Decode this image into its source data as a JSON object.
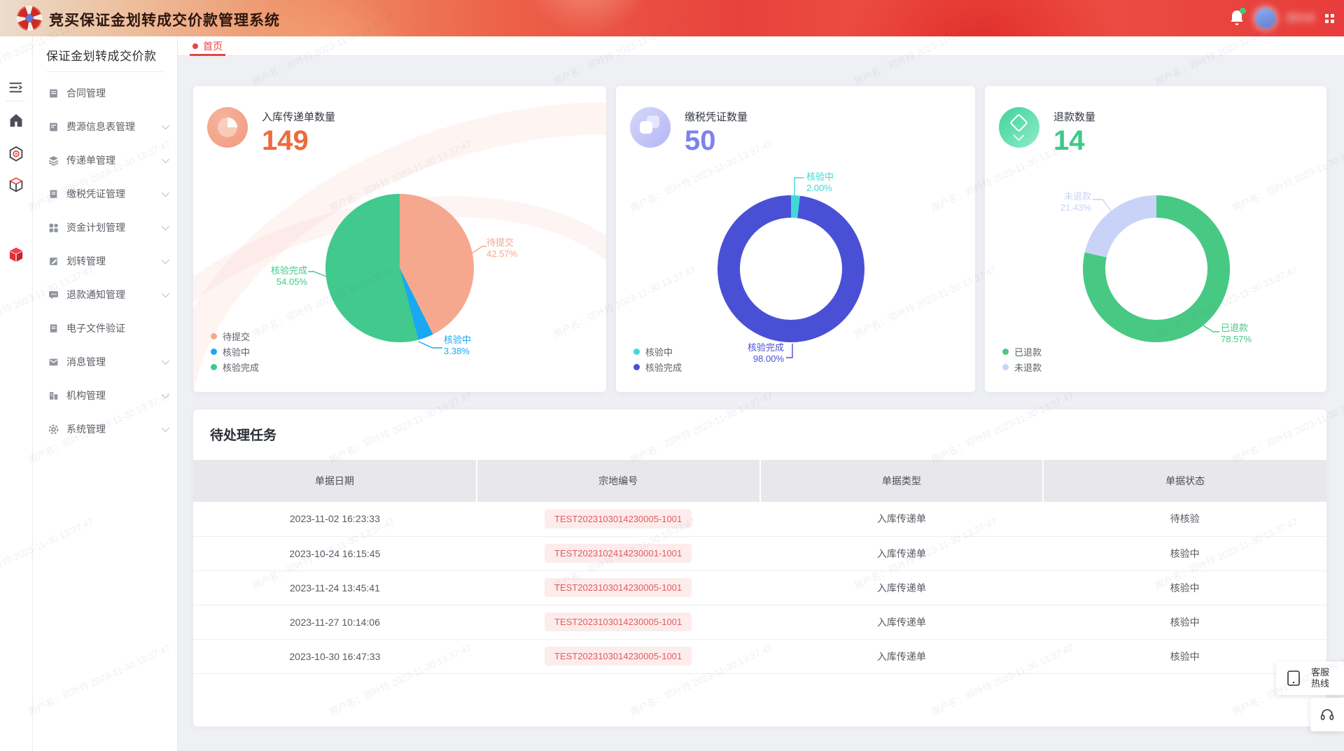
{
  "app": {
    "title": "竞买保证金划转成交价款管理系统"
  },
  "topbar": {
    "user_name": "邓叶玲"
  },
  "watermark": {
    "text": "用户名：邓叶玲 2023-11-30 13:37:47"
  },
  "sidebar": {
    "panel_title": "保证金划转成交价款",
    "items": [
      {
        "label": "合同管理",
        "icon": "contract-doc-icon",
        "has_children": false
      },
      {
        "label": "费源信息表管理",
        "icon": "fee-table-icon",
        "has_children": true
      },
      {
        "label": "传递单管理",
        "icon": "transfer-layers-icon",
        "has_children": true
      },
      {
        "label": "缴税凭证管理",
        "icon": "tax-receipt-icon",
        "has_children": true
      },
      {
        "label": "资金计划管理",
        "icon": "fund-grid-icon",
        "has_children": true
      },
      {
        "label": "划转管理",
        "icon": "transfer-note-icon",
        "has_children": true
      },
      {
        "label": "退款通知管理",
        "icon": "refund-chat-icon",
        "has_children": true
      },
      {
        "label": "电子文件验证",
        "icon": "efile-receipt-icon",
        "has_children": false
      },
      {
        "label": "消息管理",
        "icon": "message-mail-icon",
        "has_children": true
      },
      {
        "label": "机构管理",
        "icon": "org-building-icon",
        "has_children": true
      },
      {
        "label": "系统管理",
        "icon": "system-gear-icon",
        "has_children": true
      }
    ]
  },
  "tabs": [
    {
      "label": "首页",
      "active": true
    }
  ],
  "chart_data": [
    {
      "type": "pie",
      "title": "入库传递单数量",
      "total": 149,
      "slices": [
        {
          "label": "待提交",
          "value": 42.57,
          "pct": "42.57%",
          "color": "#f5a88e"
        },
        {
          "label": "核验中",
          "value": 3.38,
          "pct": "3.38%",
          "color": "#19a9f2"
        },
        {
          "label": "核验完成",
          "value": 54.05,
          "pct": "54.05%",
          "color": "#41c98e"
        }
      ],
      "legend_position": "bottom-left"
    },
    {
      "type": "donut",
      "title": "缴税凭证数量",
      "total": 50,
      "slices": [
        {
          "label": "核验中",
          "value": 2.0,
          "pct": "2.00%",
          "color": "#3fd9d6"
        },
        {
          "label": "核验完成",
          "value": 98.0,
          "pct": "98.00%",
          "color": "#4a50d5"
        }
      ],
      "legend_position": "bottom-left"
    },
    {
      "type": "donut",
      "title": "退款数量",
      "total": 14,
      "slices": [
        {
          "label": "已退款",
          "value": 78.57,
          "pct": "78.57%",
          "color": "#47c983"
        },
        {
          "label": "未退款",
          "value": 21.43,
          "pct": "21.43%",
          "color": "#c9d3f7"
        }
      ],
      "legend_position": "bottom-left"
    }
  ],
  "task_panel": {
    "title": "待处理任务",
    "columns": [
      "单据日期",
      "宗地编号",
      "单据类型",
      "单据状态"
    ],
    "rows": [
      {
        "date": "2023-11-02 16:23:33",
        "parcel_id": "TEST2023103014230005-1001",
        "doc_type": "入库传递单",
        "status": "待核验"
      },
      {
        "date": "2023-10-24 16:15:45",
        "parcel_id": "TEST2023102414230001-1001",
        "doc_type": "入库传递单",
        "status": "核验中"
      },
      {
        "date": "2023-11-24 13:45:41",
        "parcel_id": "TEST2023103014230005-1001",
        "doc_type": "入库传递单",
        "status": "核验中"
      },
      {
        "date": "2023-11-27 10:14:06",
        "parcel_id": "TEST2023103014230005-1001",
        "doc_type": "入库传递单",
        "status": "核验中"
      },
      {
        "date": "2023-10-30 16:47:33",
        "parcel_id": "TEST2023103014230005-1001",
        "doc_type": "入库传递单",
        "status": "核验中"
      }
    ]
  },
  "service_widget": {
    "line1": "客服",
    "line2": "热线"
  }
}
